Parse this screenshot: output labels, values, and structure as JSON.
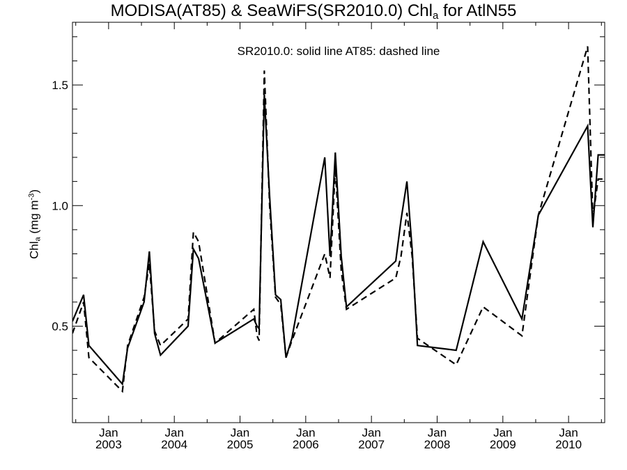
{
  "chart_data": {
    "type": "line",
    "title": {
      "part1": "MODISA(AT85) & SeaWiFS(SR2010.0)  Chl",
      "sub": "a",
      "part2": " for AtlN55"
    },
    "ylabel": {
      "main": "Chl",
      "sub": "a",
      "unit_prefix": " (mg m",
      "unit_sup": "-3",
      "unit_suffix": ")"
    },
    "annotation": "SR2010.0: solid line   AT85: dashed line",
    "ylim": [
      0.1,
      1.76
    ],
    "xlim": [
      2002.45,
      2010.55
    ],
    "y_ticks": [
      0.5,
      1.0,
      1.5
    ],
    "y_tick_labels": [
      "0.5",
      "1.0",
      "1.5"
    ],
    "y_minor_ticks": [
      0.1,
      0.2,
      0.3,
      0.4,
      0.6,
      0.7,
      0.8,
      0.9,
      1.1,
      1.2,
      1.3,
      1.4,
      1.6,
      1.7
    ],
    "x_ticks": [
      2003.0,
      2004.0,
      2005.0,
      2006.0,
      2007.0,
      2008.0,
      2009.0,
      2010.0
    ],
    "x_tick_labels": [
      [
        "Jan",
        "2003"
      ],
      [
        "Jan",
        "2004"
      ],
      [
        "Jan",
        "2005"
      ],
      [
        "Jan",
        "2006"
      ],
      [
        "Jan",
        "2007"
      ],
      [
        "Jan",
        "2008"
      ],
      [
        "Jan",
        "2009"
      ],
      [
        "Jan",
        "2010"
      ]
    ],
    "grid": false,
    "series": [
      {
        "name": "SR2010.0",
        "style": "solid",
        "color": "#000000",
        "x": [
          2002.45,
          2002.62,
          2002.7,
          2003.21,
          2003.29,
          2003.54,
          2003.62,
          2003.7,
          2003.79,
          2004.21,
          2004.29,
          2004.37,
          2004.62,
          2005.21,
          2005.26,
          2005.29,
          2005.37,
          2005.45,
          2005.54,
          2005.62,
          2005.7,
          2005.79,
          2006.29,
          2006.37,
          2006.45,
          2006.54,
          2006.62,
          2007.37,
          2007.45,
          2007.54,
          2007.62,
          2007.7,
          2008.29,
          2008.7,
          2009.29,
          2009.54,
          2010.29,
          2010.37,
          2010.45,
          2010.55
        ],
        "y": [
          0.52,
          0.63,
          0.42,
          0.26,
          0.41,
          0.6,
          0.81,
          0.47,
          0.38,
          0.5,
          0.82,
          0.78,
          0.43,
          0.53,
          0.5,
          0.49,
          1.46,
          1.04,
          0.63,
          0.61,
          0.37,
          0.45,
          1.2,
          0.79,
          1.22,
          0.79,
          0.58,
          0.77,
          0.94,
          1.1,
          0.82,
          0.42,
          0.4,
          0.85,
          0.53,
          0.96,
          1.33,
          0.91,
          1.21,
          1.21
        ]
      },
      {
        "name": "AT85",
        "style": "dashed",
        "color": "#000000",
        "x": [
          2002.45,
          2002.62,
          2002.7,
          2003.21,
          2003.29,
          2003.54,
          2003.62,
          2003.7,
          2003.79,
          2004.21,
          2004.29,
          2004.37,
          2004.62,
          2005.21,
          2005.26,
          2005.29,
          2005.37,
          2005.45,
          2005.54,
          2005.62,
          2005.7,
          2005.79,
          2006.29,
          2006.37,
          2006.45,
          2006.54,
          2006.62,
          2007.37,
          2007.45,
          2007.54,
          2007.62,
          2007.7,
          2008.29,
          2008.7,
          2009.29,
          2009.54,
          2010.29,
          2010.37,
          2010.45,
          2010.55
        ],
        "y": [
          0.47,
          0.6,
          0.37,
          0.23,
          0.42,
          0.62,
          0.76,
          0.48,
          0.42,
          0.53,
          0.89,
          0.85,
          0.43,
          0.57,
          0.46,
          0.44,
          1.56,
          1.0,
          0.62,
          0.59,
          0.37,
          0.44,
          0.8,
          0.7,
          1.16,
          0.73,
          0.57,
          0.7,
          0.79,
          0.97,
          0.79,
          0.45,
          0.34,
          0.58,
          0.46,
          0.96,
          1.66,
          0.95,
          1.11,
          1.11
        ]
      }
    ]
  }
}
